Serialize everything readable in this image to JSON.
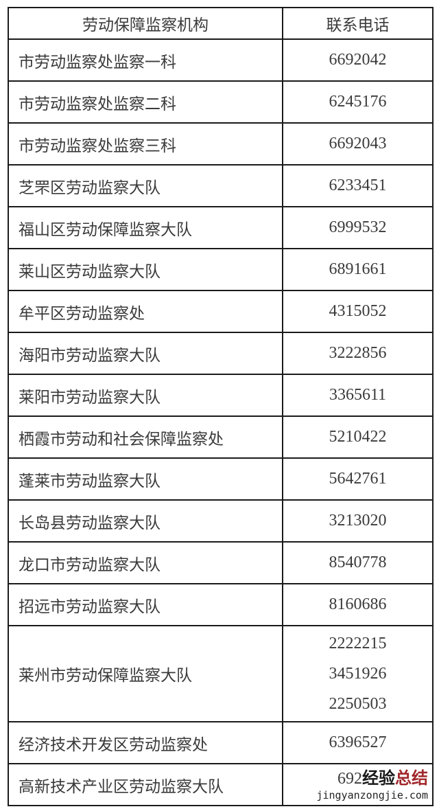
{
  "table": {
    "headers": [
      "劳动保障监察机构",
      "联系电话"
    ],
    "rows": [
      {
        "org": "市劳动监察处监察一科",
        "phones": [
          "6692042"
        ]
      },
      {
        "org": "市劳动监察处监察二科",
        "phones": [
          "6245176"
        ]
      },
      {
        "org": "市劳动监察处监察三科",
        "phones": [
          "6692043"
        ]
      },
      {
        "org": "芝罘区劳动监察大队",
        "phones": [
          "6233451"
        ]
      },
      {
        "org": "福山区劳动保障监察大队",
        "phones": [
          "6999532"
        ]
      },
      {
        "org": "莱山区劳动监察大队",
        "phones": [
          "6891661"
        ]
      },
      {
        "org": "牟平区劳动监察处",
        "phones": [
          "4315052"
        ]
      },
      {
        "org": "海阳市劳动监察大队",
        "phones": [
          "3222856"
        ]
      },
      {
        "org": "莱阳市劳动监察大队",
        "phones": [
          "3365611"
        ]
      },
      {
        "org": "栖霞市劳动和社会保障监察处",
        "phones": [
          "5210422"
        ]
      },
      {
        "org": "蓬莱市劳动监察大队",
        "phones": [
          "5642761"
        ]
      },
      {
        "org": "长岛县劳动监察大队",
        "phones": [
          "3213020"
        ]
      },
      {
        "org": "龙口市劳动监察大队",
        "phones": [
          "8540778"
        ]
      },
      {
        "org": "招远市劳动监察大队",
        "phones": [
          "8160686"
        ]
      },
      {
        "org": "莱州市劳动保障监察大队",
        "phones": [
          "2222215",
          "3451926",
          "2250503"
        ]
      },
      {
        "org": "经济技术开发区劳动监察处",
        "phones": [
          "6396527"
        ]
      },
      {
        "org": "高新技术产业区劳动监察大队",
        "phones": [
          "692"
        ]
      }
    ]
  },
  "watermark": {
    "line1a": "经验",
    "line1b": "总结",
    "line2": "jingyanzongjie.com",
    "color_a": "#1a1a1a",
    "color_b": "#a0262a"
  }
}
